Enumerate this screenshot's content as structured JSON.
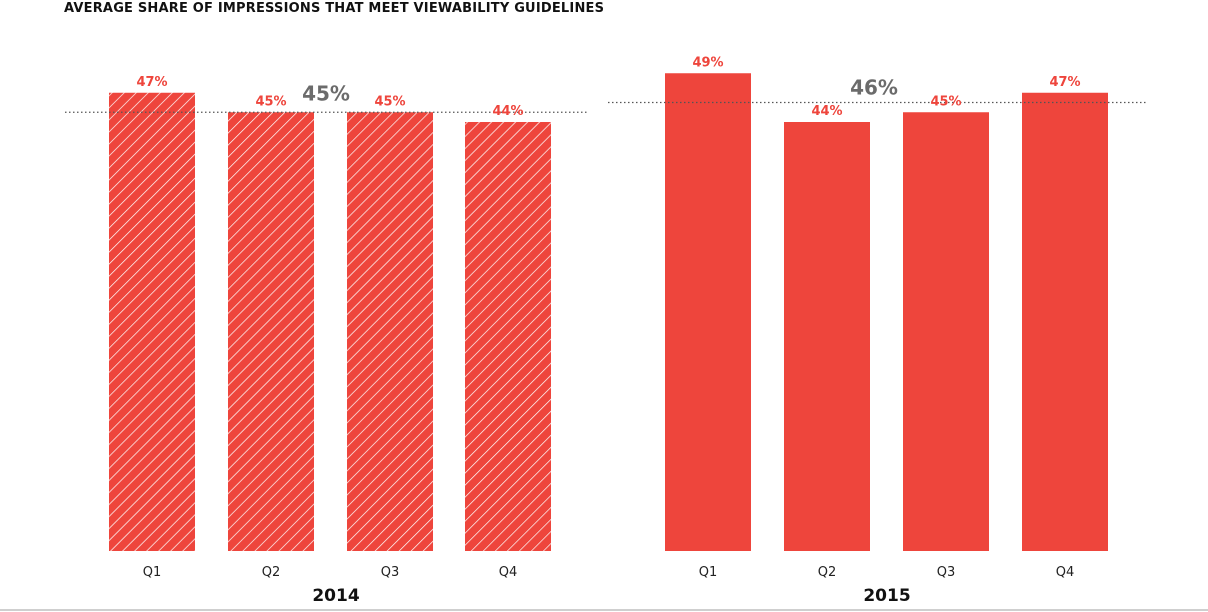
{
  "title": "AVERAGE SHARE OF IMPRESSIONS THAT MEET VIEWABILITY GUIDELINES",
  "colors": {
    "bar_fill": "#EE453C",
    "value_label": "#EE453C",
    "average_label": "#6B6B6B",
    "average_line": "#555555",
    "axis_text": "#222222",
    "hatch": "#ffffff"
  },
  "chart_data": [
    {
      "type": "bar",
      "group_label": "2014",
      "pattern": "hatched",
      "categories": [
        "Q1",
        "Q2",
        "Q3",
        "Q4"
      ],
      "values": [
        47,
        45,
        45,
        44
      ],
      "value_labels": [
        "47%",
        "45%",
        "45%",
        "44%"
      ],
      "average": 45,
      "average_label": "45%",
      "ylim": [
        0,
        50
      ]
    },
    {
      "type": "bar",
      "group_label": "2015",
      "pattern": "solid",
      "categories": [
        "Q1",
        "Q2",
        "Q3",
        "Q4"
      ],
      "values": [
        49,
        44,
        45,
        47
      ],
      "value_labels": [
        "49%",
        "44%",
        "45%",
        "47%"
      ],
      "average": 46,
      "average_label": "46%",
      "ylim": [
        0,
        50
      ]
    }
  ]
}
